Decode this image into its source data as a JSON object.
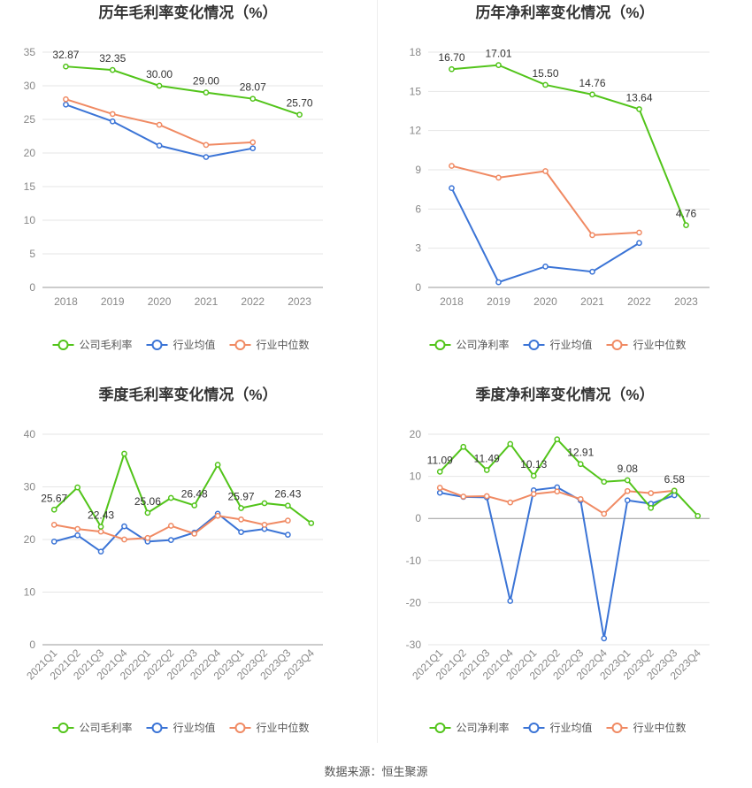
{
  "source": "数据来源：恒生聚源",
  "legend_labels": {
    "company_gross": "公司毛利率",
    "company_net": "公司净利率",
    "industry_avg": "行业均值",
    "industry_median": "行业中位数"
  },
  "colors": {
    "company": "#52c41a",
    "avg": "#3b74d6",
    "median": "#f08a63",
    "grid": "#e6e6e6"
  },
  "chart_data": [
    {
      "id": "annual-gross",
      "type": "line",
      "title": "历年毛利率变化情况（%）",
      "categories": [
        "2018",
        "2019",
        "2020",
        "2021",
        "2022",
        "2023"
      ],
      "ylim": [
        0,
        35
      ],
      "yticks": [
        0,
        5,
        10,
        15,
        20,
        25,
        30,
        35
      ],
      "series": [
        {
          "name": "公司毛利率",
          "key": "company",
          "values": [
            32.87,
            32.35,
            30.0,
            29.0,
            28.07,
            25.7
          ],
          "labels": [
            "32.87",
            "32.35",
            "30.00",
            "29.00",
            "28.07",
            "25.70"
          ]
        },
        {
          "name": "行业均值",
          "key": "avg",
          "values": [
            27.2,
            24.7,
            21.1,
            19.4,
            20.7,
            null
          ]
        },
        {
          "name": "行业中位数",
          "key": "median",
          "values": [
            28.0,
            25.8,
            24.2,
            21.2,
            21.6,
            null
          ]
        }
      ]
    },
    {
      "id": "annual-net",
      "type": "line",
      "title": "历年净利率变化情况（%）",
      "categories": [
        "2018",
        "2019",
        "2020",
        "2021",
        "2022",
        "2023"
      ],
      "ylim": [
        0,
        18
      ],
      "yticks": [
        0,
        3,
        6,
        9,
        12,
        15,
        18
      ],
      "series": [
        {
          "name": "公司净利率",
          "key": "company",
          "values": [
            16.7,
            17.01,
            15.5,
            14.76,
            13.64,
            4.76
          ],
          "labels": [
            "16.70",
            "17.01",
            "15.50",
            "14.76",
            "13.64",
            "4.76"
          ]
        },
        {
          "name": "行业均值",
          "key": "avg",
          "values": [
            7.6,
            0.4,
            1.6,
            1.2,
            3.4,
            null
          ]
        },
        {
          "name": "行业中位数",
          "key": "median",
          "values": [
            9.3,
            8.4,
            8.9,
            4.0,
            4.2,
            null
          ]
        }
      ]
    },
    {
      "id": "quarterly-gross",
      "type": "line",
      "title": "季度毛利率变化情况（%）",
      "categories": [
        "2021Q1",
        "2021Q2",
        "2021Q3",
        "2021Q4",
        "2022Q1",
        "2022Q2",
        "2022Q3",
        "2022Q4",
        "2023Q1",
        "2023Q2",
        "2023Q3",
        "2023Q4"
      ],
      "ylim": [
        0,
        40
      ],
      "yticks": [
        0,
        10,
        20,
        30,
        40
      ],
      "series": [
        {
          "name": "公司毛利率",
          "key": "company",
          "values": [
            25.67,
            29.9,
            22.43,
            36.3,
            25.06,
            27.9,
            26.48,
            34.2,
            25.97,
            26.9,
            26.43,
            23.1
          ],
          "labels": [
            "25.67",
            "",
            "22.43",
            "",
            "25.06",
            "",
            "26.48",
            "",
            "25.97",
            "",
            "26.43",
            ""
          ]
        },
        {
          "name": "行业均值",
          "key": "avg",
          "values": [
            19.6,
            20.8,
            17.7,
            22.5,
            19.6,
            19.9,
            21.3,
            24.9,
            21.4,
            22.0,
            20.9,
            null
          ]
        },
        {
          "name": "行业中位数",
          "key": "median",
          "values": [
            22.8,
            22.0,
            21.5,
            20.0,
            20.3,
            22.6,
            21.1,
            24.5,
            23.8,
            22.8,
            23.6,
            null
          ]
        }
      ]
    },
    {
      "id": "quarterly-net",
      "type": "line",
      "title": "季度净利率变化情况（%）",
      "categories": [
        "2021Q1",
        "2021Q2",
        "2021Q3",
        "2021Q4",
        "2022Q1",
        "2022Q2",
        "2022Q3",
        "2022Q4",
        "2023Q1",
        "2023Q2",
        "2023Q3",
        "2023Q4"
      ],
      "ylim": [
        -30,
        20
      ],
      "yticks": [
        -30,
        -20,
        -10,
        0,
        10,
        20
      ],
      "series": [
        {
          "name": "公司净利率",
          "key": "company",
          "values": [
            11.09,
            17.0,
            11.49,
            17.7,
            10.13,
            18.8,
            12.91,
            8.7,
            9.08,
            2.5,
            6.58,
            0.6
          ],
          "labels": [
            "11.09",
            "",
            "11.49",
            "",
            "10.13",
            "",
            "12.91",
            "",
            "9.08",
            "",
            "6.58",
            ""
          ]
        },
        {
          "name": "行业均值",
          "key": "avg",
          "values": [
            6.1,
            5.1,
            5.0,
            -19.6,
            6.7,
            7.4,
            4.3,
            -28.5,
            4.3,
            3.5,
            5.5,
            null
          ]
        },
        {
          "name": "行业中位数",
          "key": "median",
          "values": [
            7.3,
            5.2,
            5.3,
            3.8,
            5.8,
            6.4,
            4.6,
            1.1,
            6.5,
            6.0,
            6.6,
            null
          ]
        }
      ]
    }
  ]
}
